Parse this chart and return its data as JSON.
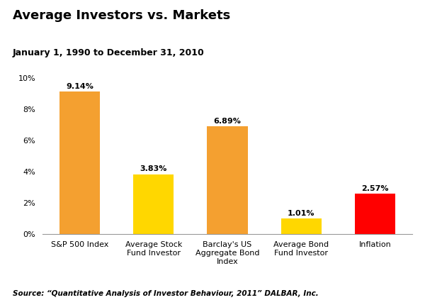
{
  "title": "Average Investors vs. Markets",
  "subtitle": "January 1, 1990 to December 31, 2010",
  "source": "Source: “Quantitative Analysis of Investor Behaviour, 2011” DALBAR, Inc.",
  "categories": [
    "S&P 500 Index",
    "Average Stock\nFund Investor",
    "Barclay's US\nAggregate Bond\nIndex",
    "Average Bond\nFund Investor",
    "Inflation"
  ],
  "values": [
    9.14,
    3.83,
    6.89,
    1.01,
    2.57
  ],
  "labels": [
    "9.14%",
    "3.83%",
    "6.89%",
    "1.01%",
    "2.57%"
  ],
  "bar_colors": [
    "#F4A030",
    "#FFD700",
    "#F4A030",
    "#FFD700",
    "#FF0000"
  ],
  "ylim": [
    0,
    10
  ],
  "yticks": [
    0,
    2,
    4,
    6,
    8,
    10
  ],
  "yticklabels": [
    "0%",
    "2%",
    "4%",
    "6%",
    "8%",
    "10%"
  ],
  "background_color": "#FFFFFF",
  "title_fontsize": 13,
  "subtitle_fontsize": 9,
  "label_fontsize": 8,
  "tick_fontsize": 8,
  "source_fontsize": 7.5
}
